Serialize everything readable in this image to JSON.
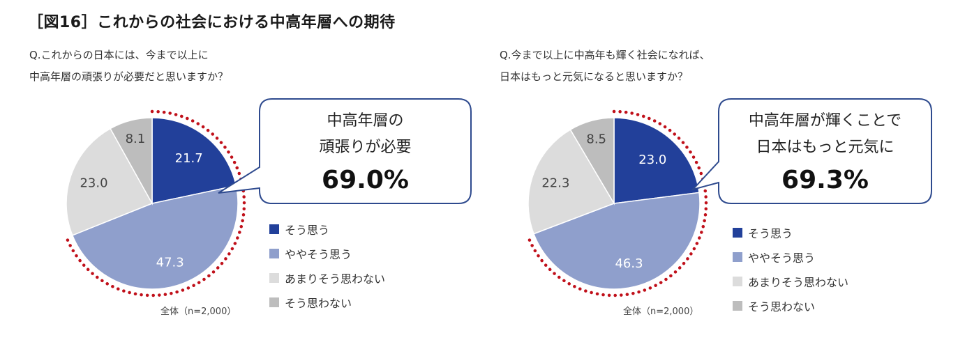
{
  "title": "［図16］これからの社会における中高年層への期待",
  "colors": {
    "so_omou": "#22409A",
    "yaya": "#8F9FCC",
    "amari": "#DCDCDC",
    "omowanai": "#BDBDBD",
    "dotted": "#C0101A",
    "callout_border": "#2E4A8E"
  },
  "legend": {
    "items": [
      "そう思う",
      "ややそう思う",
      "あまりそう思わない",
      "そう思わない"
    ]
  },
  "chart_data": [
    {
      "type": "pie",
      "question_line1": "Q.これからの日本には、今まで以上に",
      "question_line2": "中高年層の頑張りが必要だと思いますか？",
      "categories": [
        "そう思う",
        "ややそう思う",
        "あまりそう思わない",
        "そう思わない"
      ],
      "values": [
        21.7,
        47.3,
        23.0,
        8.1
      ],
      "labels": [
        "21.7",
        "47.3",
        "23.0",
        "8.1"
      ],
      "callout_line1": "中高年層の",
      "callout_line2": "頑張りが必要",
      "callout_value": "69.0%",
      "base": "全体（n=2,000）"
    },
    {
      "type": "pie",
      "question_line1": "Q.今まで以上に中高年も輝く社会になれば、",
      "question_line2": "日本はもっと元気になると思いますか？",
      "categories": [
        "そう思う",
        "ややそう思う",
        "あまりそう思わない",
        "そう思わない"
      ],
      "values": [
        23.0,
        46.3,
        22.3,
        8.5
      ],
      "labels": [
        "23.0",
        "46.3",
        "22.3",
        "8.5"
      ],
      "callout_line1": "中高年層が輝くことで",
      "callout_line2": "日本はもっと元気に",
      "callout_value": "69.3%",
      "base": "全体（n=2,000）"
    }
  ]
}
